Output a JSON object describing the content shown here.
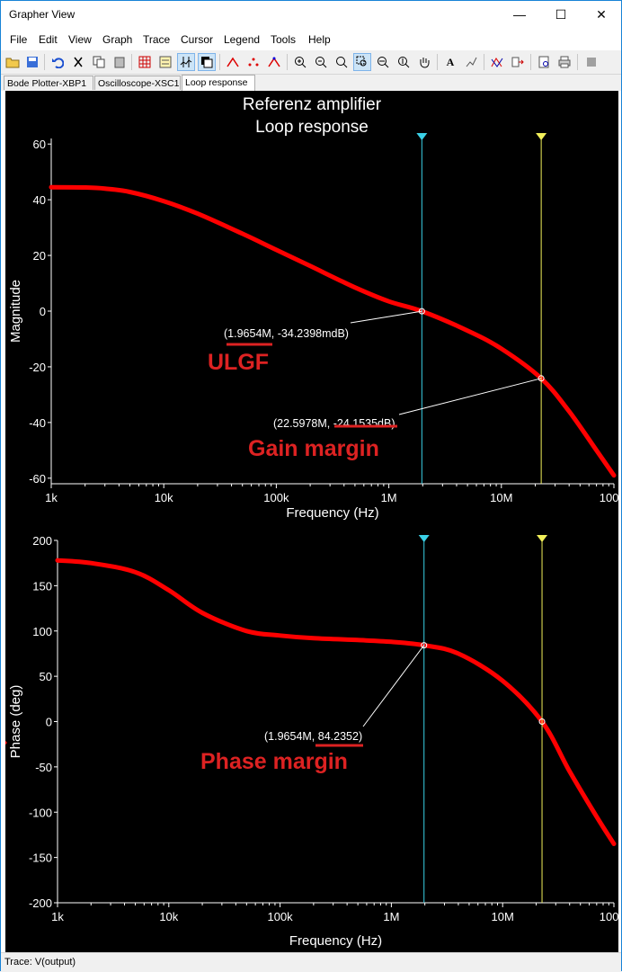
{
  "window": {
    "title": "Grapher View",
    "minimize": "—",
    "maximize": "☐",
    "close": "✕"
  },
  "menu": [
    "File",
    "Edit",
    "View",
    "Graph",
    "Trace",
    "Cursor",
    "Legend",
    "Tools",
    "Help"
  ],
  "toolbar": {
    "icons": [
      "open-icon",
      "save-icon",
      "undo-icon",
      "cut-icon",
      "copy-icon",
      "paste-icon",
      "grid-icon",
      "legend-icon",
      "cursors-icon",
      "reverse-colors-icon",
      "select-marks-icon",
      "show-points-icon",
      "show-lines-icon",
      "zoom-in-icon",
      "zoom-out-icon",
      "zoom-full-icon",
      "zoom-area-icon",
      "zoom-x-icon",
      "zoom-y-icon",
      "pan-icon",
      "text-icon",
      "properties-icon",
      "overlay-icon",
      "export-icon",
      "print-preview-icon",
      "print-icon",
      "stop-icon"
    ],
    "active": [
      "cursors-icon",
      "reverse-colors-icon",
      "zoom-area-icon"
    ]
  },
  "tabs": [
    {
      "label": "Bode Plotter-XBP1",
      "active": false
    },
    {
      "label": "Oscilloscope-XSC1",
      "active": false
    },
    {
      "label": "Loop response",
      "active": true
    }
  ],
  "graph": {
    "title_line1": "Referenz amplifier",
    "title_line2": "Loop response",
    "colors": {
      "background": "#000000",
      "trace": "#ff0000",
      "cursor1": "#3ad0e6",
      "cursor2": "#f2f05a",
      "axis_text": "#ffffff",
      "annotation": "#dd2222"
    }
  },
  "chart_data": [
    {
      "type": "line",
      "name": "magnitude",
      "xlabel": "Frequency (Hz)",
      "ylabel": "Magnitude",
      "xscale": "log",
      "xlim": [
        1000,
        100000000
      ],
      "ylim": [
        -62,
        62
      ],
      "x_ticks": [
        "1k",
        "10k",
        "100k",
        "1M",
        "10M",
        "100M"
      ],
      "y_ticks": [
        "60",
        "40",
        "20",
        "0",
        "-20",
        "-40",
        "-60"
      ],
      "grid": false,
      "series": [
        {
          "x": [
            1000,
            2000,
            3000,
            5000,
            10000,
            20000,
            50000,
            100000,
            200000,
            500000,
            1000000,
            1965400,
            5000000,
            10000000,
            22597800,
            40000000,
            70000000,
            100000000
          ],
          "y": [
            44.5,
            44.4,
            44.0,
            42.8,
            39.5,
            35.0,
            27.8,
            22.0,
            16.2,
            8.5,
            3.5,
            -0.03,
            -7.0,
            -13.5,
            -24.15,
            -36.0,
            -50.0,
            -59.0
          ]
        }
      ],
      "cursors": [
        {
          "label": "(1.9654M, -34.2398mdB)",
          "x": 1965400,
          "y": -0.0342
        },
        {
          "label": "(22.5978M, -24.1535dB)",
          "x": 22597800,
          "y": -24.1535
        }
      ],
      "annotations": [
        "ULGF",
        "Gain margin"
      ]
    },
    {
      "type": "line",
      "name": "phase",
      "xlabel": "Frequency (Hz)",
      "ylabel": "Phase (deg)",
      "xscale": "log",
      "xlim": [
        1000,
        100000000
      ],
      "ylim": [
        -200,
        200
      ],
      "x_ticks": [
        "1k",
        "10k",
        "100k",
        "1M",
        "10M",
        "100M"
      ],
      "y_ticks": [
        "200",
        "150",
        "100",
        "50",
        "0",
        "-50",
        "-100",
        "-150",
        "-200"
      ],
      "grid": false,
      "series": [
        {
          "x": [
            1000,
            2000,
            5000,
            10000,
            20000,
            50000,
            100000,
            200000,
            500000,
            1000000,
            1965400,
            4000000,
            10000000,
            22597800,
            40000000,
            70000000,
            100000000
          ],
          "y": [
            178,
            175,
            165,
            145,
            120,
            100,
            95,
            92,
            90,
            88,
            84.2352,
            75,
            45,
            0,
            -55,
            -105,
            -135
          ]
        }
      ],
      "cursors": [
        {
          "label": "(1.9654M, 84.2352)",
          "x": 1965400,
          "y": 84.2352
        }
      ],
      "annotations": [
        "Phase margin"
      ]
    }
  ],
  "status": "Trace: V(output)"
}
